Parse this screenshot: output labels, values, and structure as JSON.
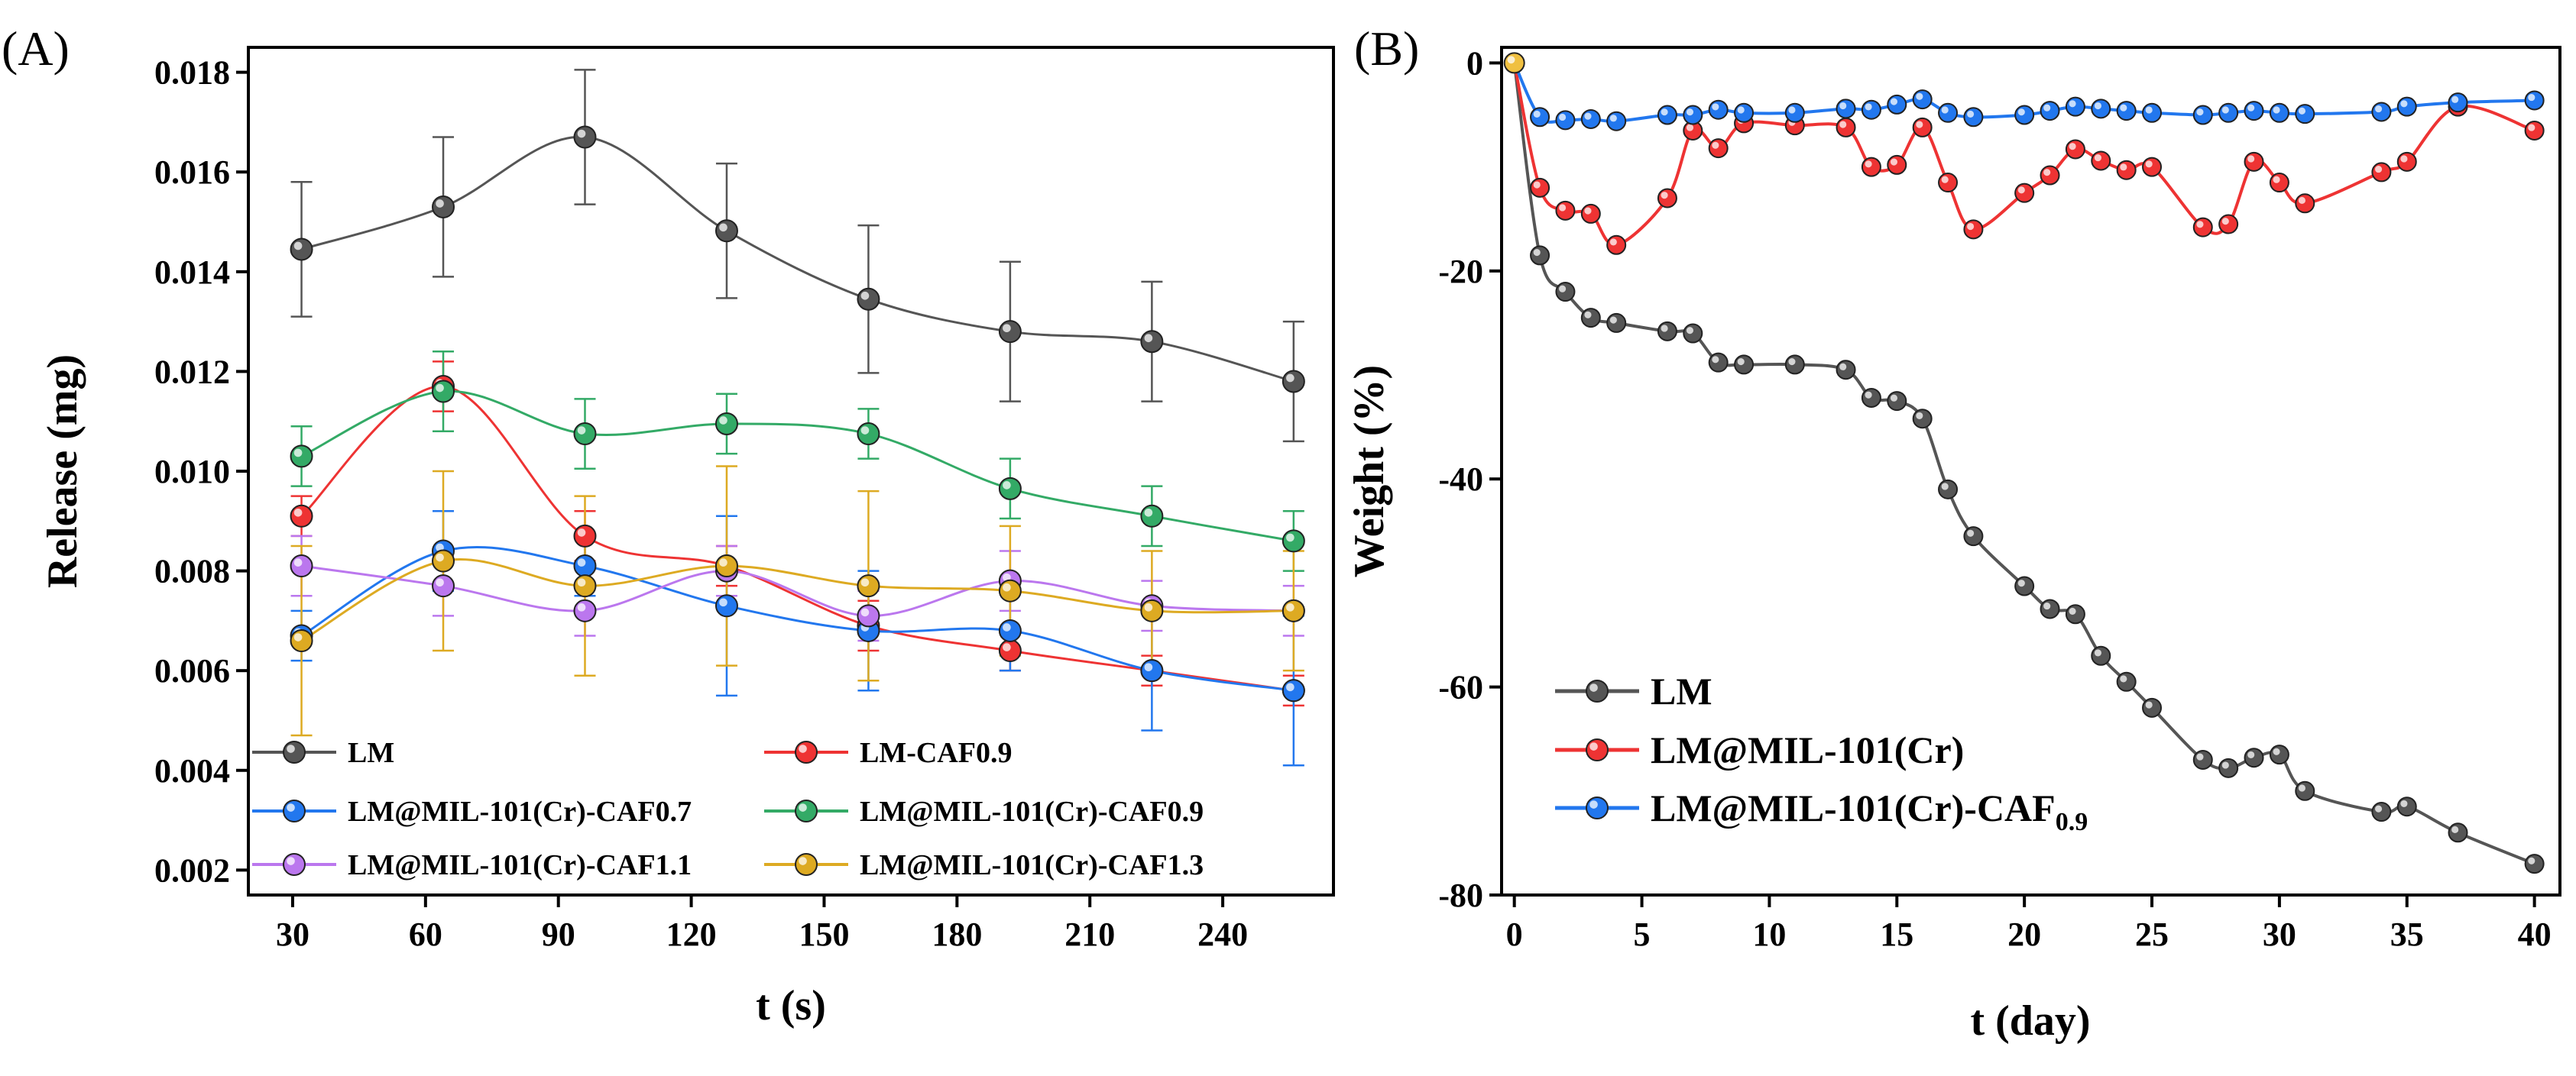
{
  "chart_data": [
    {
      "panel": "(A)",
      "type": "line",
      "xlabel": "t (s)",
      "ylabel": "Release (mg)",
      "xlim": [
        20,
        265
      ],
      "ylim": [
        0.0015,
        0.0185
      ],
      "xticks": [
        30,
        60,
        90,
        120,
        150,
        180,
        210,
        240
      ],
      "yticks": [
        0.002,
        0.004,
        0.006,
        0.008,
        0.01,
        0.012,
        0.014,
        0.016,
        0.018
      ],
      "ytick_labels": [
        "0.002",
        "0.004",
        "0.006",
        "0.008",
        "0.010",
        "0.012",
        "0.014",
        "0.016",
        "0.018"
      ],
      "x": [
        32,
        64,
        96,
        128,
        160,
        192,
        224,
        256
      ],
      "legend_location": "bottom",
      "series": [
        {
          "name": "LM",
          "color": "#555555",
          "values": [
            0.01445,
            0.0153,
            0.0167,
            0.01482,
            0.01345,
            0.0128,
            0.0126,
            0.0118
          ],
          "errors": [
            0.00135,
            0.0014,
            0.00135,
            0.00135,
            0.00148,
            0.0014,
            0.0012,
            0.0012
          ]
        },
        {
          "name": "LM-CAF0.9",
          "color": "#ee3333",
          "values": [
            0.0091,
            0.0117,
            0.0087,
            0.0081,
            0.0069,
            0.0064,
            0.006,
            0.0056
          ],
          "errors": [
            0.0004,
            0.0005,
            0.0005,
            0.0004,
            0.0005,
            0.0004,
            0.0003,
            0.0003
          ]
        },
        {
          "name": "LM@MIL-101(Cr)-CAF0.7",
          "color": "#2277ee",
          "values": [
            0.0067,
            0.0084,
            0.0081,
            0.0073,
            0.0068,
            0.0068,
            0.006,
            0.0056
          ],
          "errors": [
            0.0005,
            0.0008,
            0.0006,
            0.0018,
            0.0012,
            0.0008,
            0.0012,
            0.0015
          ]
        },
        {
          "name": "LM@MIL-101(Cr)-CAF0.9",
          "color": "#33aa66",
          "values": [
            0.0103,
            0.0116,
            0.01075,
            0.01095,
            0.01075,
            0.00965,
            0.0091,
            0.0086
          ],
          "errors": [
            0.0006,
            0.0008,
            0.0007,
            0.0006,
            0.0005,
            0.0006,
            0.0006,
            0.0006
          ]
        },
        {
          "name": "LM@MIL-101(Cr)-CAF1.1",
          "color": "#bb77ee",
          "values": [
            0.0081,
            0.0077,
            0.0072,
            0.008,
            0.0071,
            0.0078,
            0.0073,
            0.0072
          ],
          "errors": [
            0.0006,
            0.0006,
            0.0005,
            0.0005,
            0.0005,
            0.0006,
            0.0005,
            0.0005
          ]
        },
        {
          "name": "LM@MIL-101(Cr)-CAF1.3",
          "color": "#ddaa22",
          "values": [
            0.0066,
            0.0082,
            0.0077,
            0.0081,
            0.0077,
            0.0076,
            0.0072,
            0.0072
          ],
          "errors": [
            0.0019,
            0.0018,
            0.0018,
            0.002,
            0.0019,
            0.0013,
            0.0012,
            0.0012
          ]
        }
      ]
    },
    {
      "panel": "(B)",
      "type": "line",
      "xlabel": "t (day)",
      "ylabel": "Weight (%)",
      "xlim": [
        -0.5,
        41
      ],
      "ylim": [
        -80,
        1.5
      ],
      "xticks": [
        0,
        5,
        10,
        15,
        20,
        25,
        30,
        35,
        40
      ],
      "yticks": [
        0,
        -20,
        -40,
        -60,
        -80
      ],
      "legend_location": "bottom-left",
      "series": [
        {
          "name": "LM",
          "color": "#555555",
          "x": [
            0,
            1,
            2,
            3,
            4,
            6,
            7,
            8,
            9,
            11,
            13,
            14,
            15,
            16,
            17,
            18,
            20,
            21,
            22,
            23,
            24,
            25,
            27,
            28,
            29,
            30,
            31,
            34,
            35,
            37,
            40
          ],
          "y": [
            0,
            -18.5,
            -22,
            -24.5,
            -25,
            -25.8,
            -26,
            -28.8,
            -29,
            -29,
            -29.5,
            -32.2,
            -32.5,
            -34.2,
            -41,
            -45.5,
            -50.3,
            -52.5,
            -53,
            -57,
            -59.5,
            -62,
            -67,
            -67.8,
            -66.8,
            -66.5,
            -70,
            -72,
            -71.5,
            -74,
            -77
          ]
        },
        {
          "name": "LM@MIL-101(Cr)",
          "color": "#ee3333",
          "x": [
            0,
            1,
            2,
            3,
            4,
            6,
            7,
            8,
            9,
            11,
            13,
            14,
            15,
            16,
            17,
            18,
            20,
            21,
            22,
            23,
            24,
            25,
            27,
            28,
            29,
            30,
            31,
            34,
            35,
            37,
            40
          ],
          "y": [
            0,
            -12,
            -14.2,
            -14.5,
            -17.5,
            -13,
            -6.5,
            -8.2,
            -5.8,
            -6,
            -6.2,
            -10,
            -9.8,
            -6.2,
            -11.5,
            -16,
            -12.5,
            -10.8,
            -8.3,
            -9.4,
            -10.3,
            -10,
            -15.8,
            -15.5,
            -9.5,
            -11.5,
            -13.5,
            -10.5,
            -9.5,
            -4.2,
            -6.5
          ]
        },
        {
          "name": "LM@MIL-101(Cr)-CAF0.9",
          "legend_main": "LM@MIL-101(Cr)-CAF",
          "legend_sub": "0.9",
          "color": "#2277ee",
          "x": [
            0,
            1,
            2,
            3,
            4,
            6,
            7,
            8,
            9,
            11,
            13,
            14,
            15,
            16,
            17,
            18,
            20,
            21,
            22,
            23,
            24,
            25,
            27,
            28,
            29,
            30,
            31,
            34,
            35,
            37,
            40
          ],
          "y": [
            0,
            -5.2,
            -5.5,
            -5.4,
            -5.6,
            -5,
            -5,
            -4.5,
            -4.8,
            -4.8,
            -4.4,
            -4.5,
            -4,
            -3.5,
            -4.8,
            -5.2,
            -5,
            -4.6,
            -4.2,
            -4.4,
            -4.6,
            -4.8,
            -5,
            -4.8,
            -4.6,
            -4.8,
            -4.9,
            -4.7,
            -4.2,
            -3.8,
            -3.6
          ]
        }
      ]
    }
  ]
}
